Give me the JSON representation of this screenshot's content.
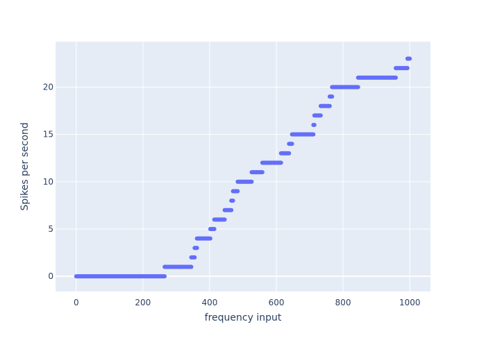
{
  "chart_data": {
    "type": "scatter",
    "title": "",
    "xlabel": "frequency input",
    "ylabel": "Spikes per second",
    "xlim": [
      -62,
      1062
    ],
    "ylim": [
      -1.6,
      24.8
    ],
    "x_ticks": [
      0,
      200,
      400,
      600,
      800,
      1000
    ],
    "y_ticks": [
      0,
      5,
      10,
      15,
      20
    ],
    "grid": true,
    "legend": "none",
    "colors": {
      "plot_background": "#E5ECF6",
      "gridline": "#ffffff",
      "marker": "#636EFA",
      "text": "#2a3f5f"
    },
    "series": [
      {
        "points": [
          {
            "x_start": 0,
            "x_end": 265,
            "y": 0
          },
          {
            "x_start": 265,
            "x_end": 345,
            "y": 1
          },
          {
            "x_start": 345,
            "x_end": 355,
            "y": 2
          },
          {
            "x_start": 355,
            "x_end": 362,
            "y": 3
          },
          {
            "x_start": 362,
            "x_end": 402,
            "y": 4
          },
          {
            "x_start": 402,
            "x_end": 414,
            "y": 5
          },
          {
            "x_start": 414,
            "x_end": 445,
            "y": 6
          },
          {
            "x_start": 445,
            "x_end": 465,
            "y": 7
          },
          {
            "x_start": 465,
            "x_end": 470,
            "y": 8
          },
          {
            "x_start": 470,
            "x_end": 484,
            "y": 9
          },
          {
            "x_start": 484,
            "x_end": 526,
            "y": 10
          },
          {
            "x_start": 526,
            "x_end": 558,
            "y": 11
          },
          {
            "x_start": 558,
            "x_end": 614,
            "y": 12
          },
          {
            "x_start": 614,
            "x_end": 638,
            "y": 13
          },
          {
            "x_start": 638,
            "x_end": 647,
            "y": 14
          },
          {
            "x_start": 647,
            "x_end": 711,
            "y": 15
          },
          {
            "x_start": 711,
            "x_end": 714,
            "y": 16
          },
          {
            "x_start": 714,
            "x_end": 733,
            "y": 17
          },
          {
            "x_start": 733,
            "x_end": 760,
            "y": 18
          },
          {
            "x_start": 760,
            "x_end": 767,
            "y": 19
          },
          {
            "x_start": 767,
            "x_end": 845,
            "y": 20
          },
          {
            "x_start": 845,
            "x_end": 958,
            "y": 21
          },
          {
            "x_start": 958,
            "x_end": 993,
            "y": 22
          },
          {
            "x_start": 993,
            "x_end": 1000,
            "y": 23
          }
        ]
      }
    ]
  }
}
